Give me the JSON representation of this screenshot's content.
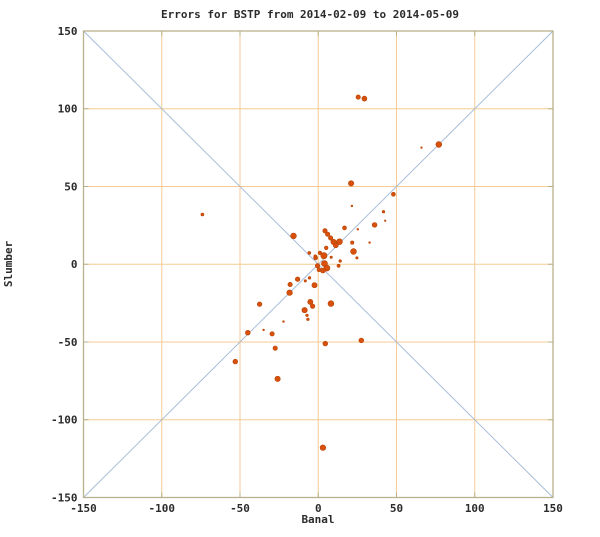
{
  "chart_data": {
    "type": "scatter",
    "title": "Errors for BSTP from 2014-02-09 to 2014-05-09",
    "xlabel": "Banal",
    "ylabel": "Slumber",
    "xlim": [
      -150,
      150
    ],
    "ylim": [
      -150,
      150
    ],
    "xticks": [
      -150,
      -100,
      -50,
      0,
      50,
      100,
      150
    ],
    "yticks": [
      -150,
      -100,
      -50,
      0,
      50,
      100,
      150
    ],
    "grid": true,
    "grid_ticks": [
      -100,
      -50,
      0,
      50,
      100
    ],
    "legend": "none",
    "reference_lines": [
      {
        "name": "identity-line",
        "from": [
          -150,
          -150
        ],
        "to": [
          150,
          150
        ]
      },
      {
        "name": "anti-identity-line",
        "from": [
          -150,
          150
        ],
        "to": [
          150,
          -150
        ]
      }
    ],
    "colors": {
      "point": "#d9500e",
      "point_edge": "#b54300",
      "grid": "#f6cb94",
      "border": "#b9b08c",
      "diagonal": "#a8bdd9",
      "text": "#2b2b2b"
    },
    "series": [
      {
        "name": "errors",
        "marker": "circle",
        "note": "points are [x, y, marker_radius_px]",
        "points": [
          [
            25.5,
            107.5,
            2.2
          ],
          [
            29.5,
            106.5,
            2.5
          ],
          [
            77,
            77,
            2.9
          ],
          [
            66,
            75,
            0.8
          ],
          [
            21,
            52,
            2.7
          ],
          [
            48,
            45,
            2.0
          ],
          [
            21.5,
            37.5,
            0.9
          ],
          [
            41.7,
            33.8,
            1.3
          ],
          [
            -74,
            32,
            1.5
          ],
          [
            42.8,
            28,
            0.8
          ],
          [
            36,
            25.3,
            2.4
          ],
          [
            25.3,
            22.5,
            0.9
          ],
          [
            16.8,
            23.4,
            2.0
          ],
          [
            32.8,
            13.9,
            0.9
          ],
          [
            -15.8,
            18.2,
            2.9
          ],
          [
            4.3,
            21.5,
            2.2
          ],
          [
            6,
            19.3,
            2.2
          ],
          [
            7.9,
            16.9,
            2.2
          ],
          [
            9.8,
            14.3,
            2.7
          ],
          [
            11.2,
            12.2,
            2.5
          ],
          [
            13.6,
            14.5,
            2.9
          ],
          [
            21.7,
            13.9,
            1.7
          ],
          [
            22.5,
            8.2,
            2.9
          ],
          [
            24.7,
            4.1,
            1.2
          ],
          [
            14,
            2.1,
            1.3
          ],
          [
            13,
            -1,
            1.6
          ],
          [
            5.1,
            10.5,
            1.8
          ],
          [
            1.1,
            7.3,
            1.8
          ],
          [
            3.6,
            5.5,
            3.1
          ],
          [
            -1.7,
            4.1,
            2.0
          ],
          [
            8.3,
            4.5,
            1.2
          ],
          [
            -5.7,
            7.3,
            1.5
          ],
          [
            -1.9,
            5.1,
            1.5
          ],
          [
            4,
            0.5,
            3.0
          ],
          [
            5.5,
            -2.5,
            3.0
          ],
          [
            3,
            -4,
            2.5
          ],
          [
            -0.5,
            -1,
            2.2
          ],
          [
            0.5,
            -3.5,
            2.0
          ],
          [
            -13.2,
            -9.6,
            2.3
          ],
          [
            -5.6,
            -8.8,
            1.3
          ],
          [
            -8.3,
            -10.7,
            1.2
          ],
          [
            -2.4,
            -13.5,
            2.6
          ],
          [
            -18,
            -13,
            2.2
          ],
          [
            -18.3,
            -18.3,
            2.8
          ],
          [
            -5.1,
            -24.2,
            2.6
          ],
          [
            -3.6,
            -27,
            2.3
          ],
          [
            8.1,
            -25.3,
            2.9
          ],
          [
            -8.7,
            -29.5,
            2.7
          ],
          [
            -7.2,
            -32.8,
            1.3
          ],
          [
            -6.6,
            -35.4,
            1.3
          ],
          [
            -37.5,
            -25.7,
            2.3
          ],
          [
            -22.2,
            -36.9,
            0.9
          ],
          [
            -45,
            -44,
            2.4
          ],
          [
            -34.9,
            -42.2,
            0.9
          ],
          [
            -29.5,
            -44.8,
            2.2
          ],
          [
            -27.5,
            -54,
            2.2
          ],
          [
            4.5,
            -51,
            2.4
          ],
          [
            27.5,
            -49,
            2.4
          ],
          [
            -53,
            -62.6,
            2.4
          ],
          [
            -26,
            -73.7,
            2.7
          ],
          [
            3,
            -118,
            2.8
          ]
        ]
      }
    ]
  }
}
